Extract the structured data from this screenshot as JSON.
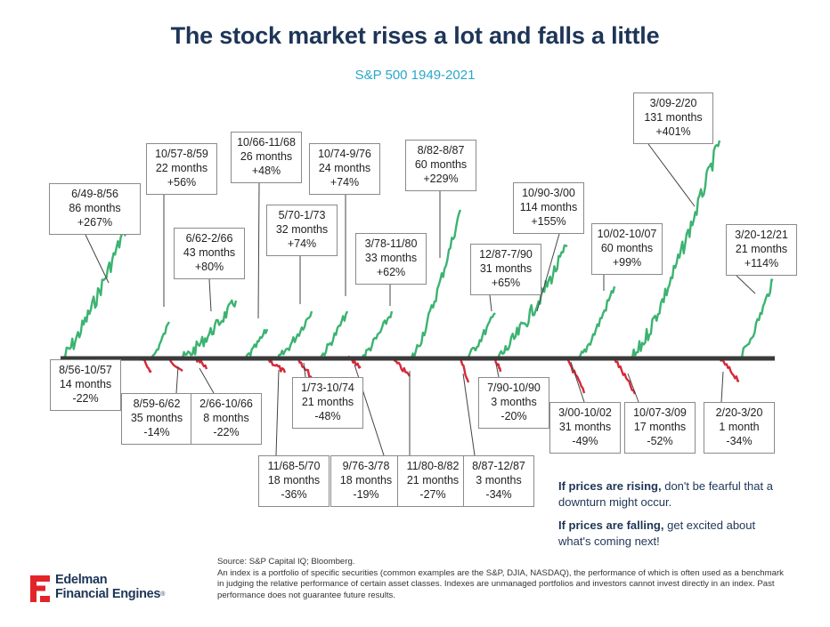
{
  "header": {
    "title": "The stock market rises a lot and falls a little",
    "subtitle": "S&P 500 1949-2021"
  },
  "chart_data": {
    "type": "line",
    "colors": {
      "rise": "#3cb371",
      "fall": "#d62839",
      "baseline": "#3a3a3a",
      "leader": "#444444"
    },
    "series": [
      {
        "period": "6/49-8/56",
        "months": "86 months",
        "change": "+267%",
        "direction": "up",
        "pct": 267
      },
      {
        "period": "8/56-10/57",
        "months": "14 months",
        "change": "-22%",
        "direction": "down",
        "pct": -22
      },
      {
        "period": "10/57-8/59",
        "months": "22 months",
        "change": "+56%",
        "direction": "up",
        "pct": 56
      },
      {
        "period": "8/59-6/62",
        "months": "35 months",
        "change": "-14%",
        "direction": "down",
        "pct": -14
      },
      {
        "period": "6/62-2/66",
        "months": "43 months",
        "change": "+80%",
        "direction": "up",
        "pct": 80
      },
      {
        "period": "2/66-10/66",
        "months": "8 months",
        "change": "-22%",
        "direction": "down",
        "pct": -22
      },
      {
        "period": "10/66-11/68",
        "months": "26 months",
        "change": "+48%",
        "direction": "up",
        "pct": 48
      },
      {
        "period": "11/68-5/70",
        "months": "18 months",
        "change": "-36%",
        "direction": "down",
        "pct": -36
      },
      {
        "period": "5/70-1/73",
        "months": "32 months",
        "change": "+74%",
        "direction": "up",
        "pct": 74
      },
      {
        "period": "1/73-10/74",
        "months": "21 months",
        "change": "-48%",
        "direction": "down",
        "pct": -48
      },
      {
        "period": "10/74-9/76",
        "months": "24 months",
        "change": "+74%",
        "direction": "up",
        "pct": 74
      },
      {
        "period": "9/76-3/78",
        "months": "18 months",
        "change": "-19%",
        "direction": "down",
        "pct": -19
      },
      {
        "period": "3/78-11/80",
        "months": "33 months",
        "change": "+62%",
        "direction": "up",
        "pct": 62
      },
      {
        "period": "11/80-8/82",
        "months": "21 months",
        "change": "-27%",
        "direction": "down",
        "pct": -27
      },
      {
        "period": "8/82-8/87",
        "months": "60 months",
        "change": "+229%",
        "direction": "up",
        "pct": 229
      },
      {
        "period": "8/87-12/87",
        "months": "3 months",
        "change": "-34%",
        "direction": "down",
        "pct": -34
      },
      {
        "period": "12/87-7/90",
        "months": "31 months",
        "change": "+65%",
        "direction": "up",
        "pct": 65
      },
      {
        "period": "7/90-10/90",
        "months": "3 months",
        "change": "-20%",
        "direction": "down",
        "pct": -20
      },
      {
        "period": "10/90-3/00",
        "months": "114 months",
        "change": "+155%",
        "direction": "up",
        "pct": 155
      },
      {
        "period": "3/00-10/02",
        "months": "31 months",
        "change": "-49%",
        "direction": "down",
        "pct": -49
      },
      {
        "period": "10/02-10/07",
        "months": "60 months",
        "change": "+99%",
        "direction": "up",
        "pct": 99
      },
      {
        "period": "10/07-3/09",
        "months": "17 months",
        "change": "-52%",
        "direction": "down",
        "pct": -52
      },
      {
        "period": "3/09-2/20",
        "months": "131 months",
        "change": "+401%",
        "direction": "up",
        "pct": 401
      },
      {
        "period": "2/20-3/20",
        "months": "1 month",
        "change": "-34%",
        "direction": "down",
        "pct": -34
      },
      {
        "period": "3/20-12/21",
        "months": "21 months",
        "change": "+114%",
        "direction": "up",
        "pct": 114
      }
    ]
  },
  "notes": [
    {
      "bold": "If prices are rising,",
      "rest": " don't be fearful that a downturn might occur."
    },
    {
      "bold": "If prices are falling,",
      "rest": " get excited about what's coming next!"
    }
  ],
  "footer": {
    "source": "Source: S&P Capital IQ; Bloomberg.",
    "disclaimer": "An index is a portfolio of specific securities (common examples are the S&P, DJIA, NASDAQ), the performance of which is often used as a benchmark in judging the relative performance of certain asset classes. Indexes are unmanaged portfolios and investors cannot invest directly in an index. Past performance does not guarantee future results."
  },
  "logo": {
    "line1": "Edelman",
    "line2": "Financial Engines",
    "reg": "®"
  }
}
